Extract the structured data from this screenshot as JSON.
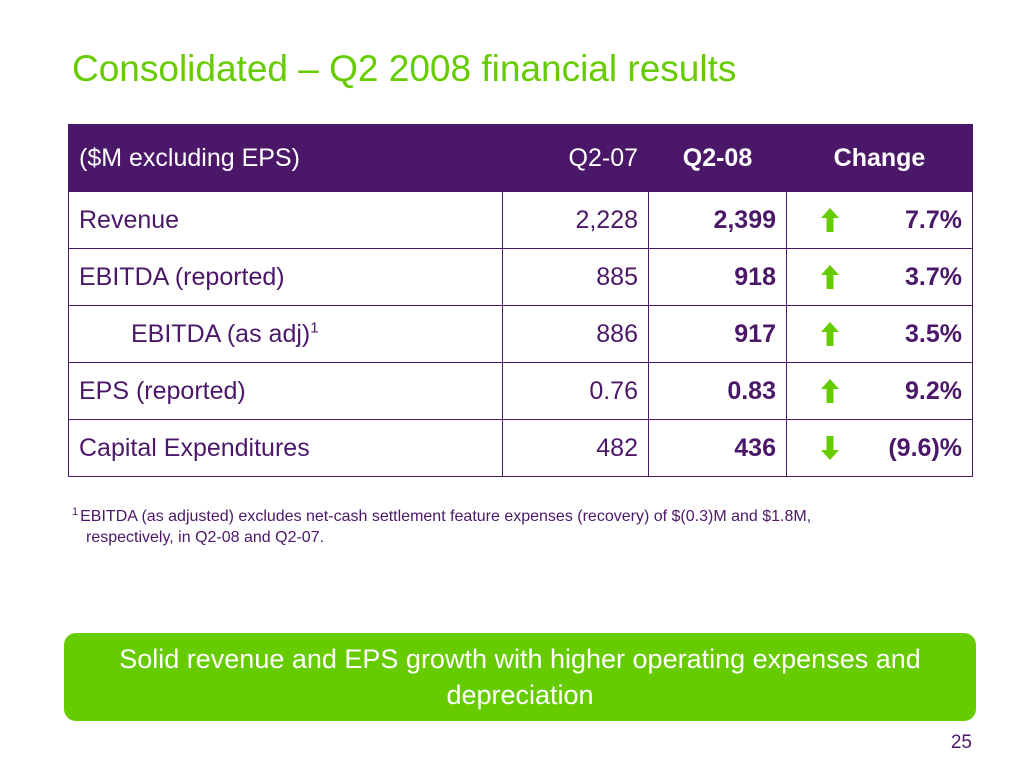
{
  "slide": {
    "title": "Consolidated – Q2 2008 financial results",
    "table": {
      "headers": {
        "label": "($M excluding EPS)",
        "q2_07": "Q2-07",
        "q2_08": "Q2-08",
        "change": "Change"
      },
      "rows": [
        {
          "label": "Revenue",
          "footnote_mark": "",
          "q2_07": "2,228",
          "q2_08": "2,399",
          "direction": "up",
          "change": "7.7%"
        },
        {
          "label": "EBITDA (reported)",
          "footnote_mark": "",
          "q2_07": "885",
          "q2_08": "918",
          "direction": "up",
          "change": "3.7%"
        },
        {
          "label": "EBITDA (as adj)",
          "footnote_mark": "1",
          "q2_07": "886",
          "q2_08": "917",
          "direction": "up",
          "change": "3.5%"
        },
        {
          "label": "EPS (reported)",
          "footnote_mark": "",
          "q2_07": "0.76",
          "q2_08": "0.83",
          "direction": "up",
          "change": "9.2%"
        },
        {
          "label": "Capital Expenditures",
          "footnote_mark": "",
          "q2_07": "482",
          "q2_08": "436",
          "direction": "down",
          "change": "(9.6)%"
        }
      ]
    },
    "footnote": {
      "mark": "1",
      "line1": "EBITDA (as adjusted) excludes net-cash settlement feature expenses (recovery) of $(0.3)M and $1.8M,",
      "line2": "respectively, in Q2-08 and Q2-07."
    },
    "banner": "Solid revenue and EPS growth with higher operating expenses and depreciation",
    "page_number": "25",
    "colors": {
      "accent_green": "#66cc00",
      "brand_purple": "#4b1869"
    }
  }
}
